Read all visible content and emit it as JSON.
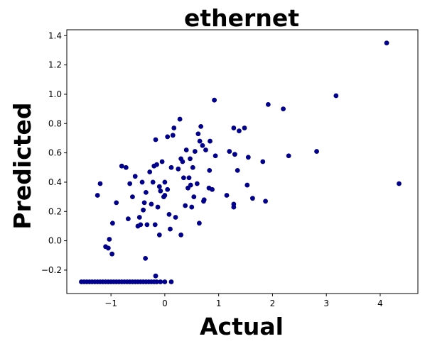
{
  "chart_data": {
    "type": "scatter",
    "title": "ethernet",
    "xlabel": "Actual",
    "ylabel": "Predicted",
    "xlim": [
      -1.82,
      4.7
    ],
    "ylim": [
      -0.36,
      1.44
    ],
    "xticks": [
      -1,
      0,
      1,
      2,
      3,
      4
    ],
    "yticks": [
      -0.2,
      0.0,
      0.2,
      0.4,
      0.6,
      0.8,
      1.0,
      1.2,
      1.4
    ],
    "xtick_labels": [
      "−1",
      "0",
      "1",
      "2",
      "3",
      "4"
    ],
    "ytick_labels": [
      "−0.2",
      "0.0",
      "0.2",
      "0.4",
      "0.6",
      "0.8",
      "1.0",
      "1.2",
      "1.4"
    ],
    "grid": false,
    "marker_color": "#00008b",
    "points": [
      [
        -1.55,
        -0.28
      ],
      [
        -1.5,
        -0.28
      ],
      [
        -1.45,
        -0.28
      ],
      [
        -1.4,
        -0.28
      ],
      [
        -1.35,
        -0.28
      ],
      [
        -1.3,
        -0.28
      ],
      [
        -1.25,
        -0.28
      ],
      [
        -1.2,
        -0.28
      ],
      [
        -1.15,
        -0.28
      ],
      [
        -1.1,
        -0.28
      ],
      [
        -1.05,
        -0.28
      ],
      [
        -1.0,
        -0.28
      ],
      [
        -0.95,
        -0.28
      ],
      [
        -0.9,
        -0.28
      ],
      [
        -0.85,
        -0.28
      ],
      [
        -0.8,
        -0.28
      ],
      [
        -0.75,
        -0.28
      ],
      [
        -0.7,
        -0.28
      ],
      [
        -0.65,
        -0.28
      ],
      [
        -0.6,
        -0.28
      ],
      [
        -0.55,
        -0.28
      ],
      [
        -0.5,
        -0.28
      ],
      [
        -0.45,
        -0.28
      ],
      [
        -0.4,
        -0.28
      ],
      [
        -0.35,
        -0.28
      ],
      [
        -0.3,
        -0.28
      ],
      [
        -0.25,
        -0.28
      ],
      [
        -0.2,
        -0.28
      ],
      [
        -0.15,
        -0.28
      ],
      [
        -0.08,
        -0.28
      ],
      [
        0.0,
        -0.28
      ],
      [
        0.12,
        -0.28
      ],
      [
        -0.17,
        -0.24
      ],
      [
        -1.25,
        0.31
      ],
      [
        -1.2,
        0.39
      ],
      [
        -1.1,
        -0.04
      ],
      [
        -1.05,
        -0.05
      ],
      [
        -1.03,
        0.01
      ],
      [
        -0.98,
        -0.09
      ],
      [
        -0.97,
        0.12
      ],
      [
        -0.9,
        0.26
      ],
      [
        -0.8,
        0.51
      ],
      [
        -0.72,
        0.5
      ],
      [
        -0.68,
        0.15
      ],
      [
        -0.65,
        0.39
      ],
      [
        -0.6,
        0.3
      ],
      [
        -0.55,
        0.44
      ],
      [
        -0.5,
        0.1
      ],
      [
        -0.47,
        0.16
      ],
      [
        -0.45,
        0.11
      ],
      [
        -0.42,
        0.4
      ],
      [
        -0.4,
        0.21
      ],
      [
        -0.38,
        0.26
      ],
      [
        -0.36,
        -0.12
      ],
      [
        -0.35,
        0.33
      ],
      [
        -0.33,
        0.11
      ],
      [
        -0.28,
        0.47
      ],
      [
        -0.25,
        0.25
      ],
      [
        -0.22,
        0.4
      ],
      [
        -0.2,
        0.51
      ],
      [
        -0.18,
        0.11
      ],
      [
        -0.17,
        0.69
      ],
      [
        -0.15,
        0.52
      ],
      [
        -0.13,
        0.23
      ],
      [
        -0.1,
        0.37
      ],
      [
        -0.1,
        0.04
      ],
      [
        -0.08,
        0.34
      ],
      [
        -0.05,
        0.54
      ],
      [
        -0.02,
        0.3
      ],
      [
        0.0,
        0.31
      ],
      [
        0.0,
        0.4
      ],
      [
        0.05,
        0.35
      ],
      [
        0.05,
        0.71
      ],
      [
        0.08,
        0.18
      ],
      [
        0.1,
        0.08
      ],
      [
        0.12,
        0.5
      ],
      [
        0.15,
        0.72
      ],
      [
        0.17,
        0.77
      ],
      [
        0.2,
        0.16
      ],
      [
        0.25,
        0.49
      ],
      [
        0.28,
        0.83
      ],
      [
        0.3,
        0.56
      ],
      [
        0.3,
        0.04
      ],
      [
        0.33,
        0.54
      ],
      [
        0.35,
        0.43
      ],
      [
        0.38,
        0.24
      ],
      [
        0.4,
        0.62
      ],
      [
        0.43,
        0.36
      ],
      [
        0.45,
        0.43
      ],
      [
        0.47,
        0.56
      ],
      [
        0.48,
        0.38
      ],
      [
        0.5,
        0.23
      ],
      [
        0.52,
        0.5
      ],
      [
        0.54,
        0.3
      ],
      [
        0.56,
        0.61
      ],
      [
        0.6,
        0.39
      ],
      [
        0.62,
        0.73
      ],
      [
        0.64,
        0.12
      ],
      [
        0.65,
        0.68
      ],
      [
        0.67,
        0.78
      ],
      [
        0.7,
        0.65
      ],
      [
        0.72,
        0.27
      ],
      [
        0.73,
        0.28
      ],
      [
        0.76,
        0.62
      ],
      [
        0.82,
        0.36
      ],
      [
        0.83,
        0.48
      ],
      [
        0.84,
        0.68
      ],
      [
        0.88,
        0.35
      ],
      [
        0.92,
        0.96
      ],
      [
        0.94,
        0.58
      ],
      [
        1.15,
        0.31
      ],
      [
        1.2,
        0.61
      ],
      [
        1.28,
        0.77
      ],
      [
        1.28,
        0.25
      ],
      [
        1.28,
        0.23
      ],
      [
        1.3,
        0.59
      ],
      [
        1.35,
        0.48
      ],
      [
        1.38,
        0.75
      ],
      [
        1.48,
        0.77
      ],
      [
        1.53,
        0.38
      ],
      [
        1.55,
        0.57
      ],
      [
        1.63,
        0.29
      ],
      [
        1.82,
        0.54
      ],
      [
        1.87,
        0.27
      ],
      [
        1.92,
        0.93
      ],
      [
        2.2,
        0.9
      ],
      [
        2.3,
        0.58
      ],
      [
        2.82,
        0.61
      ],
      [
        3.18,
        0.99
      ],
      [
        4.12,
        1.35
      ],
      [
        4.35,
        0.39
      ]
    ]
  }
}
